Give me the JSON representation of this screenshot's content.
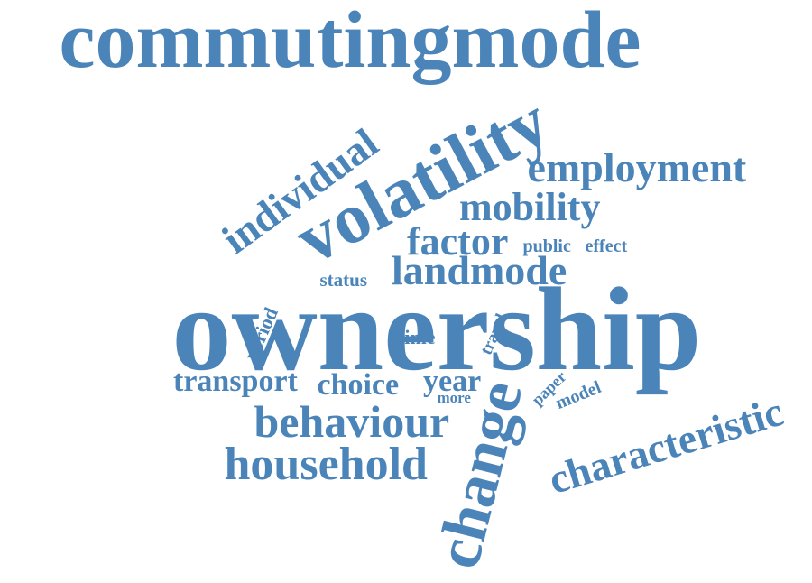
{
  "color": "#4a84b9",
  "words": [
    {
      "text": "commutingmode"
    },
    {
      "text": "volatility"
    },
    {
      "text": "individual"
    },
    {
      "text": "employment"
    },
    {
      "text": "mobility"
    },
    {
      "text": "factor"
    },
    {
      "text": "public"
    },
    {
      "text": "effect"
    },
    {
      "text": "status"
    },
    {
      "text": "landmode"
    },
    {
      "text": "ownership"
    },
    {
      "text": "period"
    },
    {
      "text": "time"
    },
    {
      "text": "travel"
    },
    {
      "text": "transport"
    },
    {
      "text": "choice"
    },
    {
      "text": "year"
    },
    {
      "text": "more"
    },
    {
      "text": "paper"
    },
    {
      "text": "model"
    },
    {
      "text": "change"
    },
    {
      "text": "behaviour"
    },
    {
      "text": "household"
    },
    {
      "text": "characteristic"
    }
  ]
}
